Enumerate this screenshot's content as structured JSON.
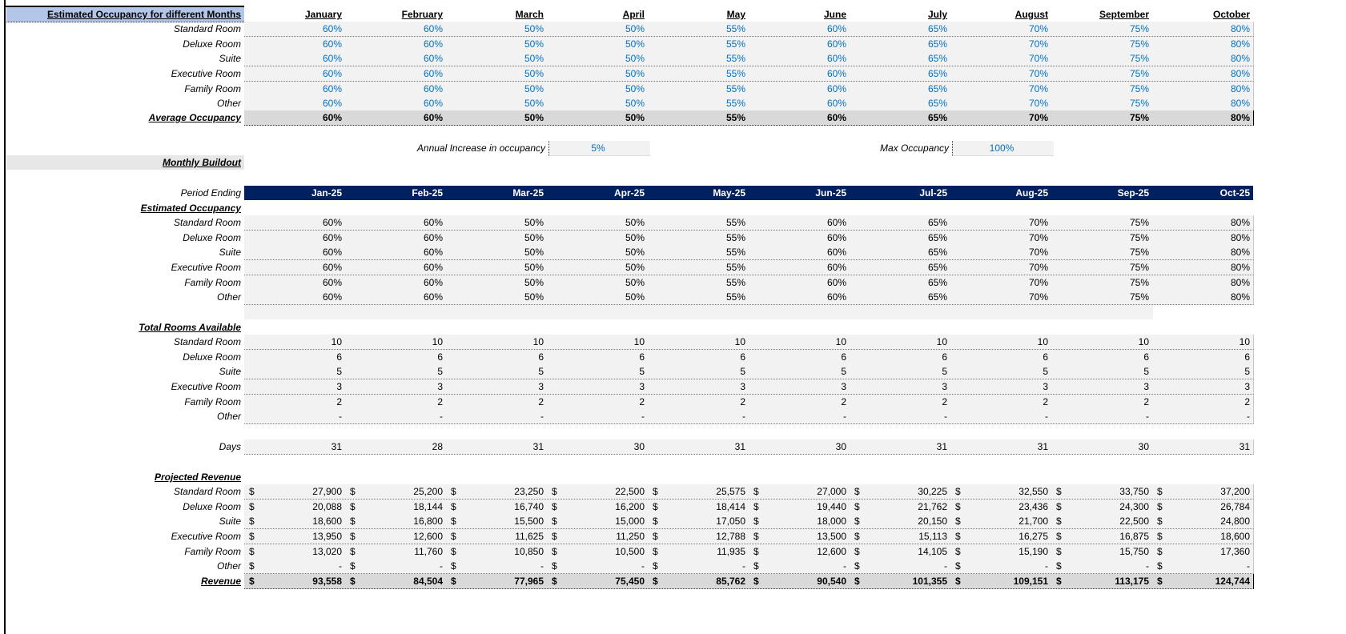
{
  "months": [
    "January",
    "February",
    "March",
    "April",
    "May",
    "June",
    "July",
    "August",
    "September",
    "October"
  ],
  "occupancy_inputs": {
    "title": "Estimated Occupancy for different Months",
    "rows": [
      {
        "label": "Standard Room",
        "values": [
          "60%",
          "60%",
          "50%",
          "50%",
          "55%",
          "60%",
          "65%",
          "70%",
          "75%",
          "80%"
        ]
      },
      {
        "label": "Deluxe Room",
        "values": [
          "60%",
          "60%",
          "50%",
          "50%",
          "55%",
          "60%",
          "65%",
          "70%",
          "75%",
          "80%"
        ]
      },
      {
        "label": "Suite",
        "values": [
          "60%",
          "60%",
          "50%",
          "50%",
          "55%",
          "60%",
          "65%",
          "70%",
          "75%",
          "80%"
        ]
      },
      {
        "label": "Executive Room",
        "values": [
          "60%",
          "60%",
          "50%",
          "50%",
          "55%",
          "60%",
          "65%",
          "70%",
          "75%",
          "80%"
        ]
      },
      {
        "label": "Family Room",
        "values": [
          "60%",
          "60%",
          "50%",
          "50%",
          "55%",
          "60%",
          "65%",
          "70%",
          "75%",
          "80%"
        ]
      },
      {
        "label": "Other",
        "values": [
          "60%",
          "60%",
          "50%",
          "50%",
          "55%",
          "60%",
          "65%",
          "70%",
          "75%",
          "80%"
        ]
      }
    ],
    "average": {
      "label": "Average Occupancy",
      "values": [
        "60%",
        "60%",
        "50%",
        "50%",
        "55%",
        "60%",
        "65%",
        "70%",
        "75%",
        "80%"
      ]
    }
  },
  "annual_increase": {
    "label": "Annual Increase in occupancy",
    "value": "5%"
  },
  "max_occupancy": {
    "label": "Max  Occupancy",
    "value": "100%"
  },
  "monthly_buildout": "Monthly Buildout",
  "period_ending": {
    "label": "Period Ending",
    "values": [
      "Jan-25",
      "Feb-25",
      "Mar-25",
      "Apr-25",
      "May-25",
      "Jun-25",
      "Jul-25",
      "Aug-25",
      "Sep-25",
      "Oct-25"
    ]
  },
  "estimated_occupancy": {
    "title": "Estimated Occupancy",
    "rows": [
      {
        "label": "Standard Room",
        "values": [
          "60%",
          "60%",
          "50%",
          "50%",
          "55%",
          "60%",
          "65%",
          "70%",
          "75%",
          "80%"
        ]
      },
      {
        "label": "Deluxe Room",
        "values": [
          "60%",
          "60%",
          "50%",
          "50%",
          "55%",
          "60%",
          "65%",
          "70%",
          "75%",
          "80%"
        ]
      },
      {
        "label": "Suite",
        "values": [
          "60%",
          "60%",
          "50%",
          "50%",
          "55%",
          "60%",
          "65%",
          "70%",
          "75%",
          "80%"
        ]
      },
      {
        "label": "Executive Room",
        "values": [
          "60%",
          "60%",
          "50%",
          "50%",
          "55%",
          "60%",
          "65%",
          "70%",
          "75%",
          "80%"
        ]
      },
      {
        "label": "Family Room",
        "values": [
          "60%",
          "60%",
          "50%",
          "50%",
          "55%",
          "60%",
          "65%",
          "70%",
          "75%",
          "80%"
        ]
      },
      {
        "label": "Other",
        "values": [
          "60%",
          "60%",
          "50%",
          "50%",
          "55%",
          "60%",
          "65%",
          "70%",
          "75%",
          "80%"
        ]
      }
    ]
  },
  "total_rooms": {
    "title": "Total Rooms Available",
    "rows": [
      {
        "label": "Standard Room",
        "values": [
          "10",
          "10",
          "10",
          "10",
          "10",
          "10",
          "10",
          "10",
          "10",
          "10"
        ]
      },
      {
        "label": "Deluxe Room",
        "values": [
          "6",
          "6",
          "6",
          "6",
          "6",
          "6",
          "6",
          "6",
          "6",
          "6"
        ]
      },
      {
        "label": "Suite",
        "values": [
          "5",
          "5",
          "5",
          "5",
          "5",
          "5",
          "5",
          "5",
          "5",
          "5"
        ]
      },
      {
        "label": "Executive Room",
        "values": [
          "3",
          "3",
          "3",
          "3",
          "3",
          "3",
          "3",
          "3",
          "3",
          "3"
        ]
      },
      {
        "label": "Family Room",
        "values": [
          "2",
          "2",
          "2",
          "2",
          "2",
          "2",
          "2",
          "2",
          "2",
          "2"
        ]
      },
      {
        "label": "Other",
        "values": [
          "-",
          "-",
          "-",
          "-",
          "-",
          "-",
          "-",
          "-",
          "-",
          "-"
        ]
      }
    ]
  },
  "days": {
    "label": "Days",
    "values": [
      "31",
      "28",
      "31",
      "30",
      "31",
      "30",
      "31",
      "31",
      "30",
      "31"
    ]
  },
  "projected_revenue": {
    "title": "Projected Revenue",
    "currency": "$",
    "rows": [
      {
        "label": "Standard Room",
        "values": [
          "27,900",
          "25,200",
          "23,250",
          "22,500",
          "25,575",
          "27,000",
          "30,225",
          "32,550",
          "33,750",
          "37,200"
        ]
      },
      {
        "label": "Deluxe Room",
        "values": [
          "20,088",
          "18,144",
          "16,740",
          "16,200",
          "18,414",
          "19,440",
          "21,762",
          "23,436",
          "24,300",
          "26,784"
        ]
      },
      {
        "label": "Suite",
        "values": [
          "18,600",
          "16,800",
          "15,500",
          "15,000",
          "17,050",
          "18,000",
          "20,150",
          "21,700",
          "22,500",
          "24,800"
        ]
      },
      {
        "label": "Executive Room",
        "values": [
          "13,950",
          "12,600",
          "11,625",
          "11,250",
          "12,788",
          "13,500",
          "15,113",
          "16,275",
          "16,875",
          "18,600"
        ]
      },
      {
        "label": "Family Room",
        "values": [
          "13,020",
          "11,760",
          "10,850",
          "10,500",
          "11,935",
          "12,600",
          "14,105",
          "15,190",
          "15,750",
          "17,360"
        ]
      },
      {
        "label": "Other",
        "values": [
          "-",
          "-",
          "-",
          "-",
          "-",
          "-",
          "-",
          "-",
          "-",
          "-"
        ]
      }
    ],
    "total": {
      "label": "Revenue",
      "values": [
        "93,558",
        "84,504",
        "77,965",
        "75,450",
        "85,762",
        "90,540",
        "101,355",
        "109,151",
        "113,175",
        "124,744"
      ]
    }
  },
  "colors": {
    "header_band": "#002060",
    "input_blue": "#0070c0",
    "title_band": "#b4c6e7",
    "cell_gray": "#f2f2f2",
    "total_gray": "#d9d9d9"
  }
}
